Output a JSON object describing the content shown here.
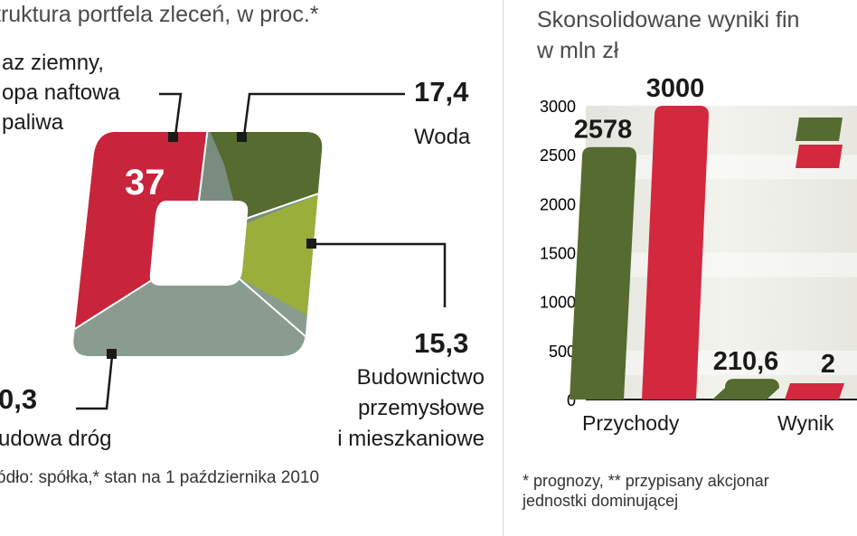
{
  "left_chart": {
    "title": "truktura portfela zleceń, w proc.*",
    "source": "ódło: spółka,* stan na 1 października 2010",
    "segments": [
      {
        "value_label": "37",
        "lines": [
          "az ziemny,",
          "opa naftowa",
          "paliwa"
        ],
        "color": "#c8243c"
      },
      {
        "value_label": "17,4",
        "lines": [
          "Woda"
        ],
        "color": "#556b2f"
      },
      {
        "value_label": "15,3",
        "lines": [
          "Budownictwo",
          "przemysłowe",
          "i mieszkaniowe"
        ],
        "color": "#9aae3c"
      },
      {
        "value_label": "0,3",
        "lines": [
          "udowa dróg"
        ],
        "color": "#7a8c80"
      }
    ]
  },
  "right_chart": {
    "title_line1": "Skonsolidowane wyniki fin",
    "title_line2": "w mln zł",
    "footnote_line1": "* prognozy, ** przypisany akcjonar",
    "footnote_line2": "jednostki dominującej"
  },
  "chart_data": [
    {
      "type": "pie",
      "title": "truktura portfela zleceń, w proc.*",
      "categories": [
        "az ziemny, opa naftowa paliwa",
        "Woda",
        "Budownictwo przemysłowe i mieszkaniowe",
        "udowa dróg"
      ],
      "values": [
        37,
        17.4,
        15.3,
        null
      ],
      "value_labels": [
        "37",
        "17,4",
        "15,3",
        "0,3"
      ],
      "colors": [
        "#c8243c",
        "#556b2f",
        "#9aae3c",
        "#7a8c80"
      ]
    },
    {
      "type": "bar",
      "title": "Skonsolidowane wyniki fin",
      "subtitle": "w mln zł",
      "categories": [
        "Przychody",
        "Wynik"
      ],
      "series": [
        {
          "values": [
            2578,
            210.6
          ],
          "value_labels": [
            "2578",
            "210,6"
          ],
          "color": "#556b2f"
        },
        {
          "values": [
            3000,
            null
          ],
          "value_labels": [
            "3000",
            "2"
          ],
          "color": "#d4283f"
        }
      ],
      "yticks": [
        0,
        500,
        1000,
        1500,
        2000,
        2500,
        3000
      ],
      "ylim": [
        0,
        3000
      ],
      "grid": false
    }
  ]
}
